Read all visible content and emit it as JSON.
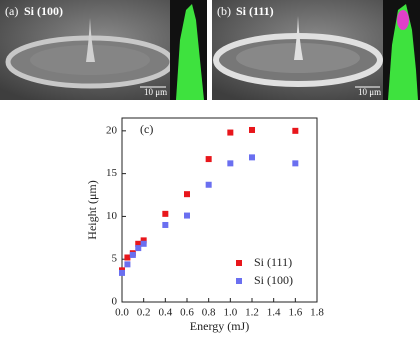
{
  "panels": [
    {
      "label": "(a)",
      "title": "Si (100)",
      "scale": "10 μm"
    },
    {
      "label": "(b)",
      "title": "Si (111)",
      "scale": "10 μm"
    }
  ],
  "chart_data": {
    "type": "scatter",
    "annotation": "(c)",
    "x_label": "Energy (mJ)",
    "y_label": "Height (μm)",
    "x": [
      0,
      0.05,
      0.1,
      0.15,
      0.2,
      0.4,
      0.6,
      0.8,
      1.0,
      1.2,
      1.6
    ],
    "series": [
      {
        "name": "Si (111)",
        "color": "#e8161b",
        "values": [
          3.7,
          5.2,
          5.7,
          6.8,
          7.2,
          10.3,
          12.6,
          16.7,
          19.8,
          20.1,
          20.0
        ]
      },
      {
        "name": "Si (100)",
        "color": "#6a6ff0",
        "values": [
          3.4,
          4.4,
          5.5,
          6.3,
          6.8,
          9.0,
          10.1,
          13.7,
          16.2,
          16.9,
          16.2
        ]
      }
    ],
    "xlim": [
      0,
      1.8
    ],
    "xticks": [
      {
        "value": 0,
        "label": "0.0"
      },
      0.2,
      0.4,
      0.6,
      0.8,
      {
        "value": 1,
        "label": "1.0"
      },
      1.2,
      1.4,
      1.6,
      1.8
    ],
    "ylim": [
      0,
      21.5
    ],
    "yticks": [
      0,
      5,
      10,
      15,
      20
    ],
    "legend": "lower right",
    "grid": false
  }
}
